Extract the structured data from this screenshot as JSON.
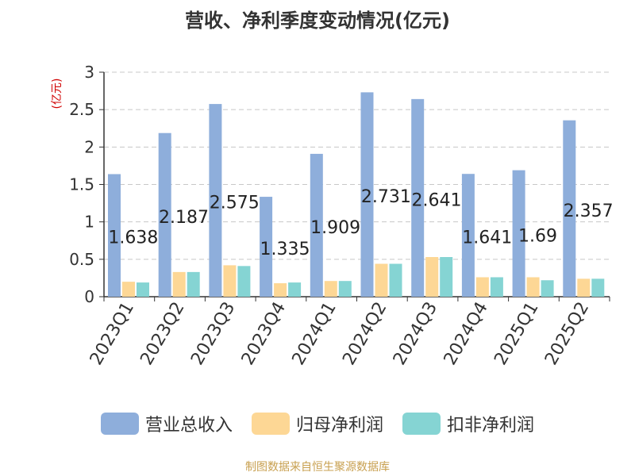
{
  "chart_data": {
    "type": "bar",
    "title": "营收、净利季度变动情况(亿元)",
    "ylabel": "(亿元)",
    "ylim": [
      0,
      3
    ],
    "yticks": [
      "0",
      "0.5",
      "1",
      "1.5",
      "2",
      "2.5",
      "3"
    ],
    "grid": true,
    "legend_position": "bottom",
    "categories": [
      "2023Q1",
      "2023Q2",
      "2023Q3",
      "2023Q4",
      "2024Q1",
      "2024Q2",
      "2024Q3",
      "2024Q4",
      "2025Q1",
      "2025Q2"
    ],
    "series": [
      {
        "name": "营业总收入",
        "color": "#8eaedb",
        "values": [
          1.638,
          2.187,
          2.575,
          1.335,
          1.909,
          2.731,
          2.641,
          1.641,
          1.69,
          2.357
        ],
        "labels": [
          "1.638",
          "2.187",
          "2.575",
          "1.335",
          "1.909",
          "2.731",
          "2.641",
          "1.641",
          "1.69",
          "2.357"
        ]
      },
      {
        "name": "归母净利润",
        "color": "#fdd795",
        "values": [
          0.2,
          0.33,
          0.42,
          0.18,
          0.21,
          0.44,
          0.53,
          0.26,
          0.26,
          0.24
        ]
      },
      {
        "name": "扣非净利润",
        "color": "#85d4d3",
        "values": [
          0.19,
          0.33,
          0.41,
          0.19,
          0.21,
          0.44,
          0.53,
          0.26,
          0.22,
          0.24
        ]
      }
    ]
  },
  "source": "制图数据来自恒生聚源数据库"
}
